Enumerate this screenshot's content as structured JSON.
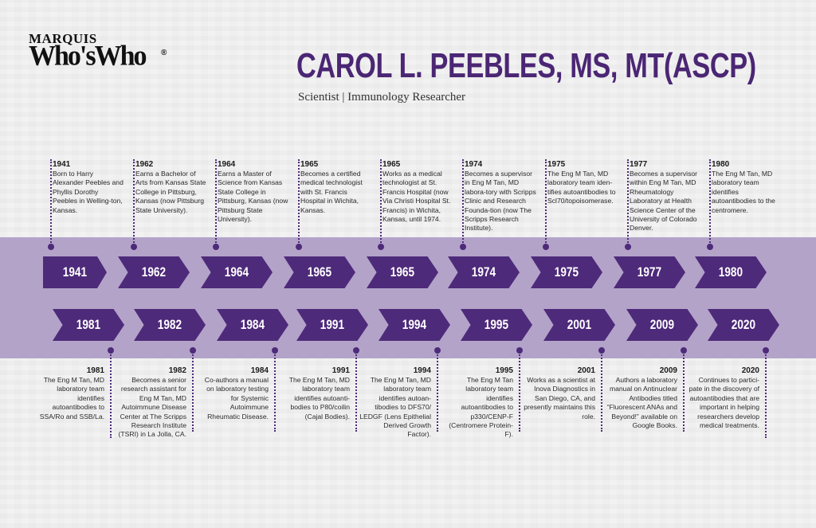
{
  "logo": {
    "line1": "MARQUIS",
    "line2": "Who'sWho",
    "registered": "®"
  },
  "header": {
    "title": "CAROL L. PEEBLES, MS, MT(ASCP)",
    "subtitle": "Scientist | Immunology Researcher"
  },
  "colors": {
    "accent": "#4e2a7a",
    "band": "#b3a3c9",
    "title": "#4b2674",
    "background": "#f2f2f2"
  },
  "timeline": {
    "top_row": [
      {
        "year": "1941",
        "text": "Born to Harry Alexander Peebles and Phyllis Dorothy Peebles in Welling-ton, Kansas."
      },
      {
        "year": "1962",
        "text": "Earns a Bachelor of Arts from Kansas State College in Pittsburg, Kansas (now Pittsburg State University)."
      },
      {
        "year": "1964",
        "text": "Earns a Master of Science from Kansas State College in Pittsburg, Kansas (now Pittsburg State University)."
      },
      {
        "year": "1965",
        "text": "Becomes a certified medical technologist with St. Francis Hospital in Wichita, Kansas."
      },
      {
        "year": "1965",
        "text": "Works as a medical technologist at St. Francis Hospital (now Via Christi Hospital St. Francis) in Wichita, Kansas, until 1974."
      },
      {
        "year": "1974",
        "text": "Becomes a supervisor in Eng M Tan, MD labora-tory with Scripps Clinic and Research Founda-tion (now The Scripps Research Institute)."
      },
      {
        "year": "1975",
        "text": "The Eng M Tan, MD laboratory team iden-tifies autoantibodies to Scl70/topoisomerase."
      },
      {
        "year": "1977",
        "text": "Becomes a supervisor within Eng M Tan, MD  Rheumatology Laboratory at Health Science Center of the University of Colorado Denver."
      },
      {
        "year": "1980",
        "text": "The Eng M Tan, MD laboratory team identifies autoantibodies to the centromere."
      }
    ],
    "bottom_row": [
      {
        "year": "1981",
        "text": "The Eng M Tan, MD laboratory team identifies autoantibodies to SSA/Ro and SSB/La."
      },
      {
        "year": "1982",
        "text": "Becomes a senior research assistant for Eng M Tan, MD Autoimmune Disease Center at The Scripps Research Institute (TSRI) in La Jolla, CA."
      },
      {
        "year": "1984",
        "text": "Co-authors a manual on laboratory testing for Systemic Autoimmune Rheumatic Disease."
      },
      {
        "year": "1991",
        "text": "The Eng M Tan, MD laboratory team identifies autoanti-bodies to P80/coilin (Cajal Bodies)."
      },
      {
        "year": "1994",
        "text": "The Eng M Tan, MD laboratory team identifies autoan-tibodies to DFS70/ LEDGF (Lens Epithelial Derived Growth Factor)."
      },
      {
        "year": "1995",
        "text": "The Eng M Tan laboratory team identifies autoantibodies to p330/CENP-F (Centromere Protein-F)."
      },
      {
        "year": "2001",
        "text": "Works as a scientist at Inova Diagnostics in San Diego, CA, and presently maintains this role."
      },
      {
        "year": "2009",
        "text": "Authors a laboratory manual on Antinuclear Antibodies titled “Fluorescent ANAs and Beyond!” available on Google Books."
      },
      {
        "year": "2020",
        "text": "Continues to partici-pate in the discovery of autoantibodies that are important in helping researchers develop medical treatments."
      }
    ]
  }
}
